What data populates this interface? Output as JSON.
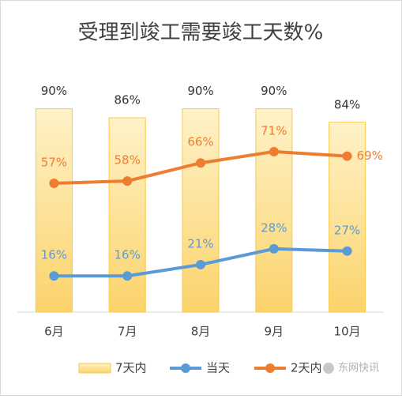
{
  "chart_data": {
    "type": "combo",
    "title": "受理到竣工需要竣工天数%",
    "categories": [
      "6月",
      "7月",
      "8月",
      "9月",
      "10月"
    ],
    "series": [
      {
        "name": "7天内",
        "type": "bar",
        "color": "#f9c94a",
        "values": [
          90,
          86,
          90,
          90,
          84
        ],
        "value_labels": [
          "90%",
          "86%",
          "90%",
          "90%",
          "84%"
        ]
      },
      {
        "name": "当天",
        "type": "line",
        "color": "#5b9bd5",
        "values": [
          16,
          16,
          21,
          28,
          27
        ],
        "value_labels": [
          "16%",
          "16%",
          "21%",
          "28%",
          "27%"
        ]
      },
      {
        "name": "2天内",
        "type": "line",
        "color": "#ed7d31",
        "values": [
          57,
          58,
          66,
          71,
          69
        ],
        "value_labels": [
          "57%",
          "58%",
          "66%",
          "71%",
          "69%"
        ]
      }
    ],
    "ylim": [
      0,
      100
    ],
    "legend": "bottom",
    "watermark": "东网快讯"
  }
}
